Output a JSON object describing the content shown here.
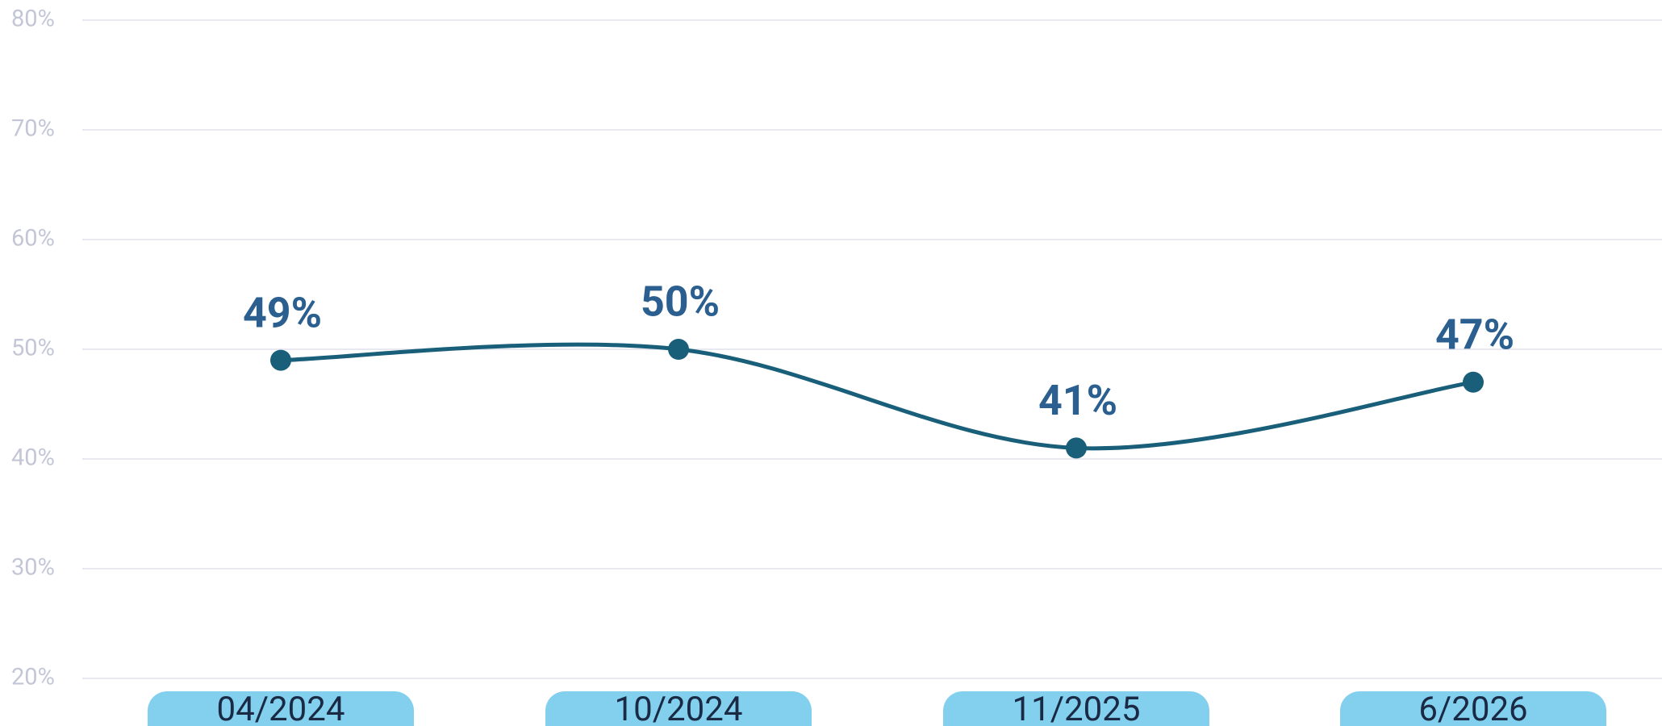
{
  "chart_data": {
    "type": "line",
    "categories": [
      "04/2024",
      "10/2024",
      "11/2025",
      "6/2026"
    ],
    "series": [
      {
        "color": "#1a5f7a",
        "values": [
          49,
          50,
          41,
          47
        ],
        "value_labels": [
          "49%",
          "50%",
          "41%",
          "47%"
        ]
      }
    ],
    "ylim": [
      20,
      80
    ],
    "yticks": [
      {
        "value": 20,
        "label": "20%"
      },
      {
        "value": 30,
        "label": "30%"
      },
      {
        "value": 40,
        "label": "40%"
      },
      {
        "value": 50,
        "label": "50%"
      },
      {
        "value": 60,
        "label": "60%"
      },
      {
        "value": 70,
        "label": "70%"
      },
      {
        "value": 80,
        "label": "80%"
      }
    ],
    "grid": true
  }
}
